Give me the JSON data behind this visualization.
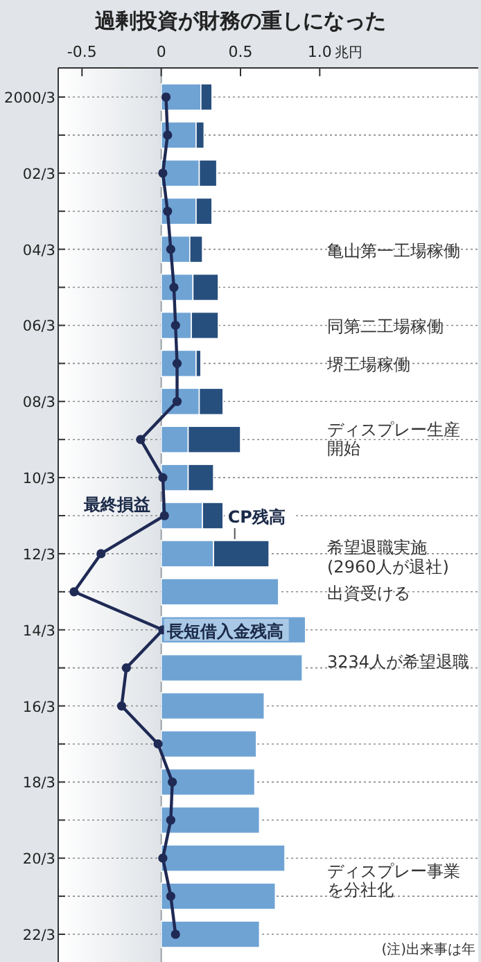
{
  "chart_data": {
    "type": "bar",
    "orientation": "horizontal",
    "stacked": true,
    "title": "過剰投資が財務の重しになった",
    "xlabel": "兆円",
    "categories": [
      "2000/3",
      null,
      "02/3",
      null,
      "04/3",
      null,
      "06/3",
      null,
      "08/3",
      null,
      "10/3",
      null,
      "12/3",
      null,
      "14/3",
      null,
      "16/3",
      null,
      "18/3",
      null,
      "20/3",
      null,
      "22/3"
    ],
    "xlim": [
      -0.65,
      2.0
    ],
    "xticks": [
      -0.5,
      0,
      0.5,
      {
        "value": 1.0,
        "label": "1.0"
      }
    ],
    "grid": "y",
    "legend": false,
    "bands": [
      {
        "axis": "x",
        "from": -0.65,
        "to": 0,
        "color": "#dfe3e7"
      }
    ],
    "series": [
      {
        "name": "長短借入金残高",
        "color": "#6fa3d4",
        "values": [
          0.25,
          0.22,
          0.24,
          0.22,
          0.18,
          0.2,
          0.19,
          0.22,
          0.24,
          0.17,
          0.17,
          0.26,
          0.33,
          0.74,
          0.91,
          0.89,
          0.65,
          0.6,
          0.59,
          0.62,
          0.78,
          0.72,
          0.62
        ]
      },
      {
        "name": "CP残高",
        "color": "#274f7e",
        "values": [
          0.07,
          0.05,
          0.11,
          0.1,
          0.08,
          0.16,
          0.17,
          0.03,
          0.15,
          0.33,
          0.16,
          0.13,
          0.35,
          null,
          null,
          null,
          null,
          null,
          null,
          null,
          null,
          null,
          null
        ]
      },
      {
        "name": "最終損益",
        "type": "line",
        "color": "#1f2a55",
        "marker": "circle",
        "values": [
          0.03,
          0.04,
          0.01,
          0.04,
          0.06,
          0.08,
          0.09,
          0.1,
          0.1,
          -0.13,
          0.01,
          0.02,
          -0.38,
          -0.55,
          0.01,
          -0.22,
          -0.25,
          -0.02,
          0.07,
          0.06,
          0.01,
          0.06,
          0.09
        ]
      }
    ],
    "annotations": [
      "亀山第一工場稼働",
      "同第二工場稼働",
      "堺工場稼働",
      "ディスプレー生産開始",
      "希望退職実施\n(2960人が退社)",
      "出資受ける",
      "3234人が希望退職",
      "ディスプレー事業を分社化",
      "(注)出来事は年"
    ]
  }
}
